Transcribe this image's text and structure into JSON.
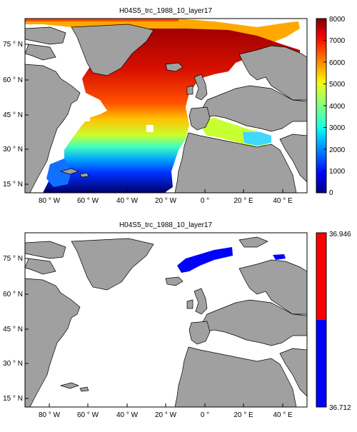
{
  "maps": [
    {
      "title": "H04S5_trc_1988_10_layer17",
      "lat_ticks": [
        "75 ° N",
        "60 ° N",
        "45 ° N",
        "30 ° N",
        "15 ° N"
      ],
      "lon_ticks": [
        "80 ° W",
        "60 ° W",
        "40 ° W",
        "20 ° W",
        "0 °",
        "20 ° E",
        "40 ° E"
      ],
      "colorbar": {
        "type": "continuous",
        "colormap": "jet",
        "min": 0,
        "max": 8000,
        "ticks": [
          "8000",
          "7000",
          "6000",
          "5000",
          "4000",
          "3000",
          "2000",
          "1000",
          "0"
        ]
      },
      "colors": {
        "land": "#a0a0a0",
        "no_data": "#ffffff"
      }
    },
    {
      "title": "H04S5_trc_1988_10_layer17",
      "lat_ticks": [
        "75 ° N",
        "60 ° N",
        "45 ° N",
        "30 ° N",
        "15 ° N"
      ],
      "lon_ticks": [
        "80 ° W",
        "60 ° W",
        "40 ° W",
        "20 ° W",
        "0 °",
        "20 ° E",
        "40 ° E"
      ],
      "colorbar": {
        "type": "two-class",
        "max_label": "36.946",
        "min_label": "36.712",
        "class_colors": [
          "#ff0000",
          "#0000ff"
        ]
      },
      "colors": {
        "land": "#a0a0a0",
        "no_data": "#ffffff",
        "data": "#0000ff"
      }
    }
  ]
}
